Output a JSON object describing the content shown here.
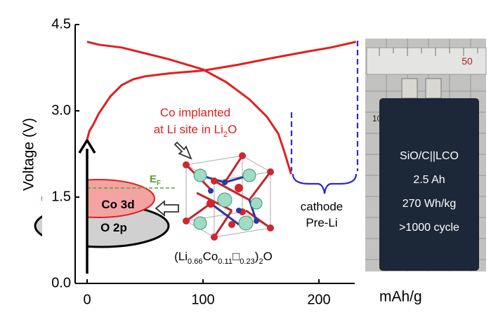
{
  "chart_data": {
    "type": "line",
    "ylabel": "Voltage (V)",
    "xlabel": "mAh/g",
    "xlim": [
      -10,
      240
    ],
    "ylim": [
      0,
      4.5
    ],
    "xticks": [
      0,
      100,
      200
    ],
    "yticks": [
      {
        "value": 0,
        "label": "0.0"
      },
      1.5,
      {
        "value": 3,
        "label": "3.0"
      },
      4.5
    ],
    "series": [
      {
        "color": "#e0201f",
        "x": [
          0,
          2,
          5,
          10,
          20,
          30,
          40,
          50,
          70,
          100,
          130,
          160,
          190,
          210,
          232
        ],
        "values": [
          2.5,
          2.65,
          2.75,
          2.95,
          3.25,
          3.45,
          3.55,
          3.6,
          3.65,
          3.7,
          3.8,
          3.92,
          4.03,
          4.1,
          4.2
        ]
      },
      {
        "color": "#e0201f",
        "x": [
          0,
          10,
          30,
          50,
          70,
          100,
          120,
          140,
          155,
          165,
          170,
          176
        ],
        "values": [
          4.2,
          4.15,
          4.1,
          4.0,
          3.9,
          3.72,
          3.5,
          3.2,
          2.9,
          2.6,
          2.3,
          1.9
        ]
      }
    ],
    "annotations": {
      "co_implanted": [
        [
          {
            "text": "Co implanted"
          }
        ],
        [
          {
            "text": "at Li site in Li"
          },
          {
            "text": "2",
            "sub": true
          },
          {
            "text": "O"
          }
        ]
      ],
      "fermi": [
        [
          {
            "text": "E"
          },
          {
            "text": "F",
            "sub": true
          }
        ]
      ],
      "co3d": [
        [
          {
            "text": "Co 3d"
          }
        ]
      ],
      "o2p": [
        [
          {
            "text": "O 2p"
          }
        ]
      ],
      "formula": [
        [
          {
            "text": "(Li"
          },
          {
            "text": "0.66",
            "sub": true
          },
          {
            "text": "Co"
          },
          {
            "text": "0.11",
            "sub": true
          },
          {
            "text": "□"
          },
          {
            "text": "0.23",
            "sub": true
          },
          {
            "text": ")"
          },
          {
            "text": "2",
            "sub": true
          },
          {
            "text": "O"
          }
        ]
      ],
      "cathode": [
        [
          {
            "text": "cathode"
          }
        ],
        [
          {
            "text": "Pre-Li"
          }
        ]
      ],
      "battery": [
        [
          {
            "text": "SiO/C||LCO"
          }
        ],
        [
          {
            "text": "2.5 Ah"
          }
        ],
        [
          {
            "text": "270 Wh/kg"
          }
        ],
        [
          {
            "text": ">1000 cycle"
          }
        ]
      ],
      "ruler": [
        [
          {
            "text": "50"
          }
        ]
      ],
      "scale": [
        [
          {
            "text": "10"
          }
        ]
      ]
    }
  }
}
